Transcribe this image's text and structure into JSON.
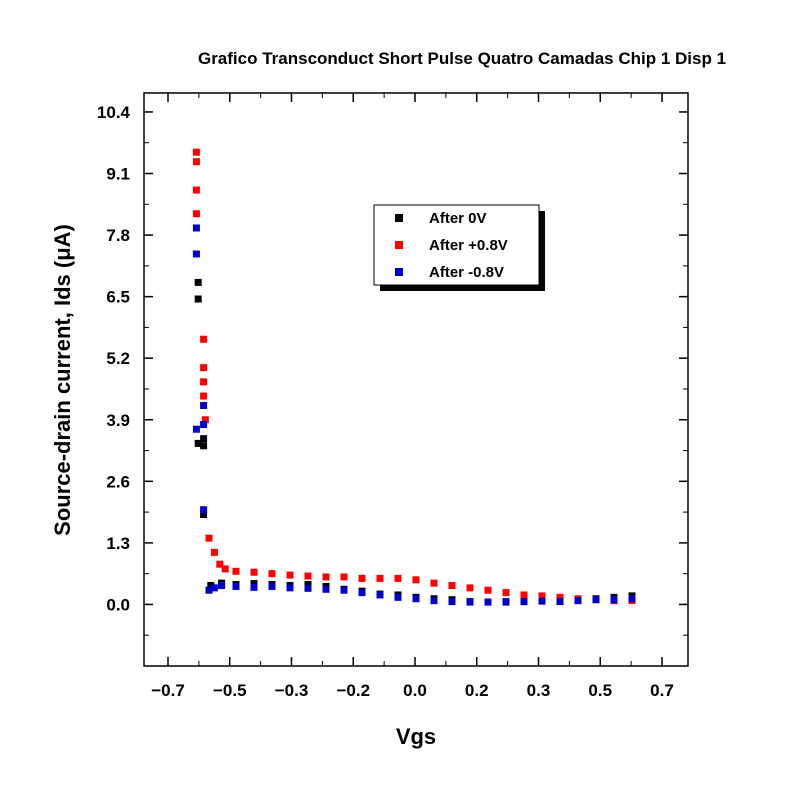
{
  "chart_data": {
    "type": "scatter",
    "title": "Grafico Transconduct Short Pulse Quatro Camadas Chip 1 Disp 1",
    "xlabel": "Vgs",
    "ylabel": "Source-drain current, Ids (μA)",
    "xlim": [
      -0.75,
      0.75
    ],
    "ylim": [
      -1.3,
      10.8
    ],
    "xticks": [
      "-0.7",
      "-0.5",
      "-0.3",
      "-0.2",
      "0.0",
      "0.2",
      "0.3",
      "0.5",
      "0.7"
    ],
    "yticks": [
      "0.0",
      "1.3",
      "2.6",
      "3.9",
      "5.2",
      "6.5",
      "7.8",
      "9.1",
      "10.4"
    ],
    "legend_position": "upper-center",
    "grid": false,
    "series": [
      {
        "name": "After 0V",
        "color": "#000000",
        "points": [
          [
            -0.605,
            6.8
          ],
          [
            -0.605,
            6.45
          ],
          [
            -0.605,
            3.4
          ],
          [
            -0.59,
            3.5
          ],
          [
            -0.59,
            3.35
          ],
          [
            -0.59,
            1.9
          ],
          [
            -0.57,
            0.4
          ],
          [
            -0.54,
            0.45
          ],
          [
            -0.5,
            0.42
          ],
          [
            -0.45,
            0.44
          ],
          [
            -0.4,
            0.42
          ],
          [
            -0.35,
            0.4
          ],
          [
            -0.3,
            0.42
          ],
          [
            -0.25,
            0.38
          ],
          [
            -0.2,
            0.32
          ],
          [
            -0.15,
            0.28
          ],
          [
            -0.1,
            0.22
          ],
          [
            -0.05,
            0.2
          ],
          [
            0.0,
            0.15
          ],
          [
            0.05,
            0.12
          ],
          [
            0.1,
            0.1
          ],
          [
            0.15,
            0.06
          ],
          [
            0.2,
            0.05
          ],
          [
            0.25,
            0.05
          ],
          [
            0.3,
            0.06
          ],
          [
            0.35,
            0.08
          ],
          [
            0.4,
            0.1
          ],
          [
            0.45,
            0.1
          ],
          [
            0.5,
            0.12
          ],
          [
            0.55,
            0.15
          ],
          [
            0.6,
            0.18
          ]
        ]
      },
      {
        "name": "After +0.8V",
        "color": "#ff0000",
        "points": [
          [
            -0.61,
            9.55
          ],
          [
            -0.61,
            9.35
          ],
          [
            -0.61,
            8.75
          ],
          [
            -0.61,
            8.25
          ],
          [
            -0.59,
            5.6
          ],
          [
            -0.59,
            5.0
          ],
          [
            -0.59,
            4.7
          ],
          [
            -0.59,
            4.4
          ],
          [
            -0.585,
            3.9
          ],
          [
            -0.575,
            1.4
          ],
          [
            -0.56,
            1.1
          ],
          [
            -0.545,
            0.85
          ],
          [
            -0.53,
            0.75
          ],
          [
            -0.5,
            0.7
          ],
          [
            -0.45,
            0.68
          ],
          [
            -0.4,
            0.65
          ],
          [
            -0.35,
            0.62
          ],
          [
            -0.3,
            0.6
          ],
          [
            -0.25,
            0.58
          ],
          [
            -0.2,
            0.58
          ],
          [
            -0.15,
            0.55
          ],
          [
            -0.1,
            0.55
          ],
          [
            -0.05,
            0.55
          ],
          [
            0.0,
            0.52
          ],
          [
            0.05,
            0.45
          ],
          [
            0.1,
            0.4
          ],
          [
            0.15,
            0.35
          ],
          [
            0.2,
            0.3
          ],
          [
            0.25,
            0.25
          ],
          [
            0.3,
            0.2
          ],
          [
            0.35,
            0.18
          ],
          [
            0.4,
            0.15
          ],
          [
            0.45,
            0.12
          ],
          [
            0.5,
            0.1
          ],
          [
            0.55,
            0.08
          ],
          [
            0.6,
            0.08
          ]
        ]
      },
      {
        "name": "After -0.8V",
        "color": "#0000cc",
        "points": [
          [
            -0.61,
            7.95
          ],
          [
            -0.61,
            7.4
          ],
          [
            -0.61,
            3.7
          ],
          [
            -0.59,
            4.2
          ],
          [
            -0.59,
            3.8
          ],
          [
            -0.59,
            2.0
          ],
          [
            -0.575,
            0.3
          ],
          [
            -0.56,
            0.35
          ],
          [
            -0.54,
            0.4
          ],
          [
            -0.5,
            0.38
          ],
          [
            -0.45,
            0.36
          ],
          [
            -0.4,
            0.38
          ],
          [
            -0.35,
            0.35
          ],
          [
            -0.3,
            0.34
          ],
          [
            -0.25,
            0.32
          ],
          [
            -0.2,
            0.3
          ],
          [
            -0.15,
            0.25
          ],
          [
            -0.1,
            0.2
          ],
          [
            -0.05,
            0.15
          ],
          [
            0.0,
            0.12
          ],
          [
            0.05,
            0.08
          ],
          [
            0.1,
            0.06
          ],
          [
            0.15,
            0.05
          ],
          [
            0.2,
            0.05
          ],
          [
            0.25,
            0.06
          ],
          [
            0.3,
            0.06
          ],
          [
            0.35,
            0.07
          ],
          [
            0.4,
            0.06
          ],
          [
            0.45,
            0.08
          ],
          [
            0.5,
            0.1
          ],
          [
            0.55,
            0.1
          ],
          [
            0.6,
            0.12
          ]
        ]
      }
    ]
  }
}
